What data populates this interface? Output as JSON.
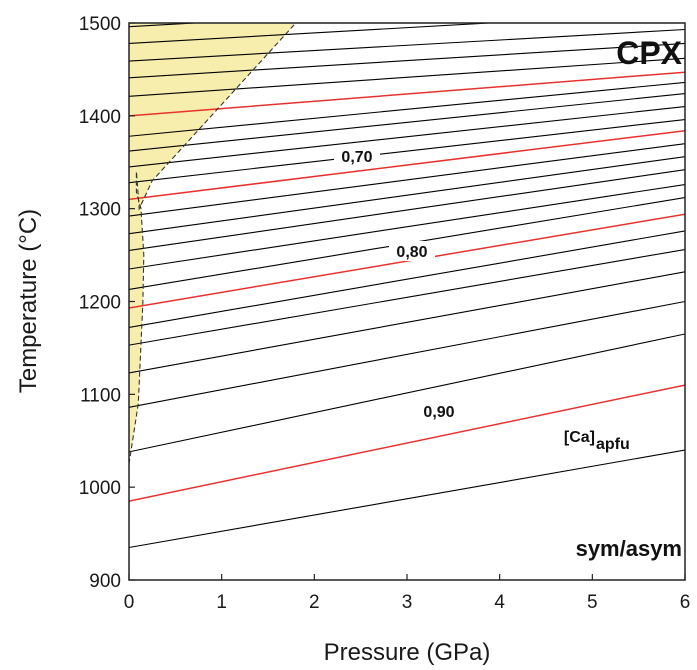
{
  "chart_data": {
    "type": "line",
    "title": "CPX",
    "subtitle": "sym/asym",
    "xlabel": "Pressure (GPa)",
    "ylabel": "Temperature (°C)",
    "xlim": [
      0,
      6
    ],
    "ylim": [
      900,
      1500
    ],
    "x_ticks": [
      "0",
      "1",
      "2",
      "3",
      "4",
      "5",
      "6"
    ],
    "y_ticks": [
      "900",
      "1000",
      "1100",
      "1200",
      "1300",
      "1400",
      "1500"
    ],
    "grid": false,
    "legend": "none",
    "series_label": "[Ca]",
    "series_label_sub": "apfu",
    "contour_labels": [
      "0,70",
      "0,80",
      "0,90"
    ],
    "colors": {
      "black_isopleth": "#000000",
      "red_isopleth": "#e8312f",
      "shaded_field": "#f7eeae",
      "field_boundary": "#333333"
    },
    "isopleths": {
      "T_at_P0": [
        935,
        985,
        1038,
        1086,
        1123,
        1153,
        1172,
        1193,
        1213,
        1235,
        1255,
        1273,
        1292,
        1310,
        1328,
        1345,
        1362,
        1378,
        1400,
        1421,
        1441,
        1459,
        1478,
        1496
      ],
      "T_at_P6": [
        1040,
        1110,
        1165,
        1200,
        1232,
        1256,
        1276,
        1294,
        1312,
        1326,
        1342,
        1356,
        1370,
        1384,
        1396,
        1410,
        1424,
        1436,
        1447,
        1462,
        1478,
        1493,
        1512,
        1530
      ],
      "red_indices": [
        1,
        7,
        13,
        18
      ]
    },
    "shaded_region_boundary": {
      "P": [
        0.0,
        0.1,
        0.15,
        0.16,
        0.13,
        0.08,
        0.08,
        0.11,
        0.25,
        1.8,
        0.0
      ],
      "T": [
        1025,
        1090,
        1200,
        1250,
        1300,
        1318,
        1340,
        1300,
        1330,
        1500,
        1500
      ]
    }
  }
}
